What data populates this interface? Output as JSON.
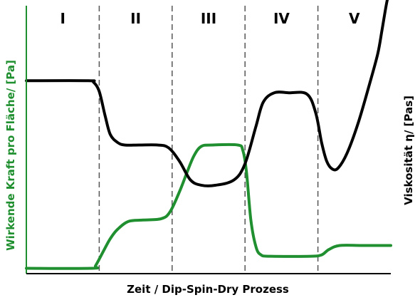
{
  "chart_data": {
    "type": "line",
    "title": "",
    "xlabel": "Zeit / Dip-Spin-Dry Prozess",
    "ylabel_left": "Wirkende Kraft pro Fläche/ [Pa]",
    "ylabel_right": "Viskosität η/ [Pas]",
    "phases": [
      "I",
      "II",
      "III",
      "IV",
      "V"
    ],
    "phase_boundaries": [
      1,
      2,
      3,
      4
    ],
    "xlim": [
      0,
      5
    ],
    "ylim": [
      0,
      1
    ],
    "grid": false,
    "colors": {
      "force": "#1f8f2f",
      "viscosity": "#000000",
      "divider": "#555555"
    },
    "series": [
      {
        "axis": "left",
        "color": "#1f8f2f",
        "points": [
          [
            0.0,
            0.02
          ],
          [
            0.9,
            0.02
          ],
          [
            0.95,
            0.03
          ],
          [
            1.05,
            0.08
          ],
          [
            1.15,
            0.13
          ],
          [
            1.25,
            0.165
          ],
          [
            1.4,
            0.195
          ],
          [
            1.6,
            0.2
          ],
          [
            1.85,
            0.205
          ],
          [
            1.97,
            0.23
          ],
          [
            2.1,
            0.305
          ],
          [
            2.2,
            0.375
          ],
          [
            2.3,
            0.44
          ],
          [
            2.4,
            0.475
          ],
          [
            2.55,
            0.48
          ],
          [
            2.9,
            0.48
          ],
          [
            2.97,
            0.46
          ],
          [
            3.02,
            0.38
          ],
          [
            3.08,
            0.2
          ],
          [
            3.15,
            0.1
          ],
          [
            3.22,
            0.07
          ],
          [
            3.35,
            0.065
          ],
          [
            3.9,
            0.065
          ],
          [
            4.05,
            0.07
          ],
          [
            4.15,
            0.09
          ],
          [
            4.3,
            0.105
          ],
          [
            4.6,
            0.105
          ],
          [
            5.0,
            0.105
          ]
        ]
      },
      {
        "axis": "right",
        "color": "#000000",
        "points": [
          [
            0.0,
            0.72
          ],
          [
            0.85,
            0.72
          ],
          [
            0.92,
            0.715
          ],
          [
            1.0,
            0.68
          ],
          [
            1.08,
            0.59
          ],
          [
            1.15,
            0.52
          ],
          [
            1.25,
            0.49
          ],
          [
            1.35,
            0.48
          ],
          [
            1.55,
            0.48
          ],
          [
            1.8,
            0.48
          ],
          [
            1.95,
            0.47
          ],
          [
            2.1,
            0.42
          ],
          [
            2.25,
            0.35
          ],
          [
            2.4,
            0.33
          ],
          [
            2.6,
            0.33
          ],
          [
            2.85,
            0.35
          ],
          [
            3.0,
            0.41
          ],
          [
            3.15,
            0.55
          ],
          [
            3.25,
            0.64
          ],
          [
            3.4,
            0.675
          ],
          [
            3.6,
            0.675
          ],
          [
            3.85,
            0.67
          ],
          [
            3.97,
            0.6
          ],
          [
            4.05,
            0.49
          ],
          [
            4.12,
            0.42
          ],
          [
            4.2,
            0.39
          ],
          [
            4.28,
            0.395
          ],
          [
            4.4,
            0.45
          ],
          [
            4.55,
            0.56
          ],
          [
            4.7,
            0.7
          ],
          [
            4.82,
            0.82
          ],
          [
            4.88,
            0.91
          ],
          [
            4.95,
            1.02
          ],
          [
            5.0,
            1.06
          ]
        ]
      }
    ]
  }
}
